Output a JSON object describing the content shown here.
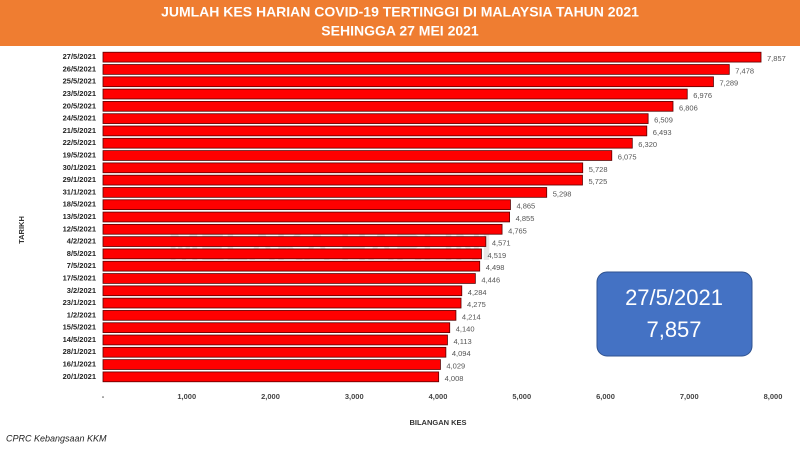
{
  "chart_data": {
    "type": "bar",
    "orientation": "horizontal",
    "title": [
      "JUMLAH KES HARIAN COVID-19 TERTINGGI DI MALAYSIA TAHUN 2021",
      "SEHINGGA 27 MEI 2021"
    ],
    "x_label": "BILANGAN KES",
    "y_label": "TARIKH",
    "categories": [
      "27/5/2021",
      "26/5/2021",
      "25/5/2021",
      "23/5/2021",
      "20/5/2021",
      "24/5/2021",
      "21/5/2021",
      "22/5/2021",
      "19/5/2021",
      "30/1/2021",
      "29/1/2021",
      "31/1/2021",
      "18/5/2021",
      "13/5/2021",
      "12/5/2021",
      "4/2/2021",
      "8/5/2021",
      "7/5/2021",
      "17/5/2021",
      "3/2/2021",
      "23/1/2021",
      "1/2/2021",
      "15/5/2021",
      "14/5/2021",
      "28/1/2021",
      "16/1/2021",
      "20/1/2021"
    ],
    "values": [
      7857,
      7478,
      7289,
      6976,
      6806,
      6509,
      6493,
      6320,
      6075,
      5728,
      5725,
      5298,
      4865,
      4855,
      4765,
      4571,
      4519,
      4498,
      4446,
      4284,
      4275,
      4214,
      4140,
      4113,
      4094,
      4029,
      4008
    ],
    "value_labels": [
      "7,857",
      "7,478",
      "7,289",
      "6,976",
      "6,806",
      "6,509",
      "6,493",
      "6,320",
      "6,075",
      "5,728",
      "5,725",
      "5,298",
      "4,865",
      "4,855",
      "4,765",
      "4,571",
      "4,519",
      "4,498",
      "4,446",
      "4,284",
      "4,275",
      "4,214",
      "4,140",
      "4,113",
      "4,094",
      "4,029",
      "4,008"
    ],
    "color": "#ff0000",
    "xlim": [
      0,
      8000
    ],
    "xticks": [
      {
        "value": 0,
        "label": "-"
      },
      {
        "value": 1000,
        "label": "1,000"
      },
      {
        "value": 2000,
        "label": "2,000"
      },
      {
        "value": 3000,
        "label": "3,000"
      },
      {
        "value": 4000,
        "label": "4,000"
      },
      {
        "value": 5000,
        "label": "5,000"
      },
      {
        "value": 6000,
        "label": "6,000"
      },
      {
        "value": 7000,
        "label": "7,000"
      },
      {
        "value": 8000,
        "label": "8,000"
      }
    ],
    "grid": false,
    "annotation": {
      "date": "27/5/2021",
      "value": "7,857"
    },
    "watermark": "MELAKA HARI INI",
    "source": "CPRC Kebangsaan KKM"
  }
}
